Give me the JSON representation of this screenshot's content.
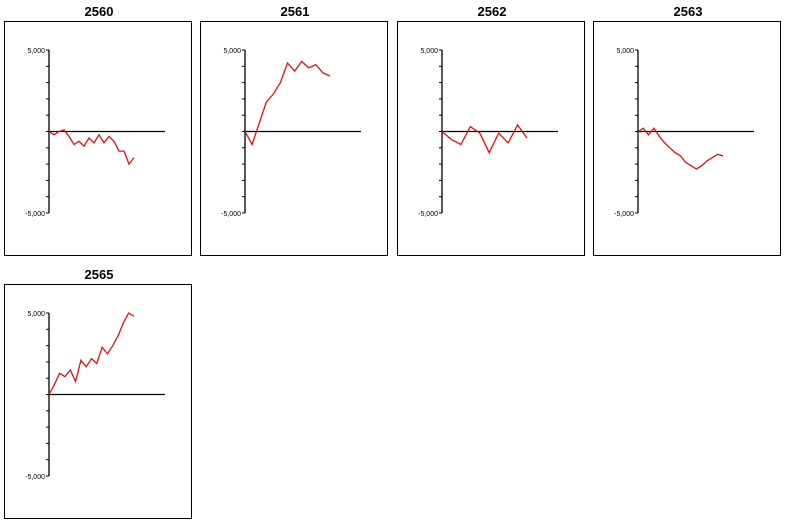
{
  "colors": {
    "line": "#dd1111",
    "axis": "#000000",
    "frame": "#000000"
  },
  "y_tick_labels": {
    "top": "5,000",
    "bottom": "-5,000"
  },
  "chart_data": [
    {
      "type": "line",
      "title": "2560",
      "ylim": [
        -5000,
        5000
      ],
      "y_ticks": [
        5000,
        4000,
        3000,
        2000,
        1000,
        0,
        -1000,
        -2000,
        -3000,
        -4000,
        -5000
      ],
      "series": [
        {
          "values": [
            0,
            -200,
            0,
            100,
            -300,
            -800,
            -600,
            -900,
            -400,
            -700,
            -200,
            -700,
            -300,
            -600,
            -1200,
            -1200,
            -2000,
            -1600
          ]
        }
      ]
    },
    {
      "type": "line",
      "title": "2561",
      "ylim": [
        -5000,
        5000
      ],
      "y_ticks": [
        5000,
        4000,
        3000,
        2000,
        1000,
        0,
        -1000,
        -2000,
        -3000,
        -4000,
        -5000
      ],
      "series": [
        {
          "values": [
            0,
            -800,
            500,
            1800,
            2300,
            3000,
            4200,
            3700,
            4300,
            3900,
            4100,
            3600,
            3400
          ]
        }
      ]
    },
    {
      "type": "line",
      "title": "2562",
      "ylim": [
        -5000,
        5000
      ],
      "y_ticks": [
        5000,
        4000,
        3000,
        2000,
        1000,
        0,
        -1000,
        -2000,
        -3000,
        -4000,
        -5000
      ],
      "series": [
        {
          "values": [
            0,
            -500,
            -800,
            300,
            -100,
            -1300,
            -100,
            -700,
            400,
            -400
          ]
        }
      ]
    },
    {
      "type": "line",
      "title": "2563",
      "ylim": [
        -5000,
        5000
      ],
      "y_ticks": [
        5000,
        4000,
        3000,
        2000,
        1000,
        0,
        -1000,
        -2000,
        -3000,
        -4000,
        -5000
      ],
      "series": [
        {
          "values": [
            0,
            200,
            -200,
            200,
            -300,
            -700,
            -1000,
            -1300,
            -1500,
            -1900,
            -2100,
            -2300,
            -2100,
            -1800,
            -1600,
            -1400,
            -1500
          ]
        }
      ]
    },
    {
      "type": "line",
      "title": "2565",
      "ylim": [
        -5000,
        5000
      ],
      "y_ticks": [
        5000,
        4000,
        3000,
        2000,
        1000,
        0,
        -1000,
        -2000,
        -3000,
        -4000,
        -5000
      ],
      "series": [
        {
          "values": [
            0,
            600,
            1300,
            1100,
            1500,
            800,
            2100,
            1700,
            2200,
            1900,
            2900,
            2500,
            3000,
            3600,
            4400,
            5000,
            4800
          ]
        }
      ]
    }
  ]
}
